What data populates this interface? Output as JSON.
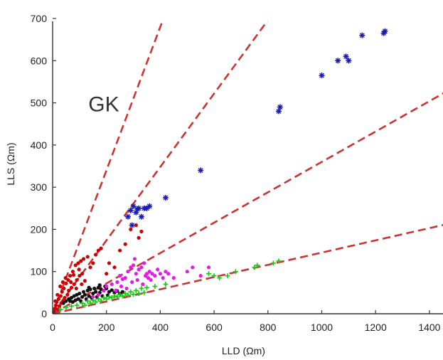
{
  "chart_data": {
    "type": "scatter",
    "title": "",
    "xlabel": "LLD (Ωm)",
    "ylabel": "LLS (Ωm)",
    "xlim": [
      0,
      1450
    ],
    "ylim": [
      0,
      710
    ],
    "x_ticks": [
      0,
      200,
      400,
      600,
      800,
      1000,
      1200,
      1400
    ],
    "y_ticks": [
      0,
      100,
      200,
      300,
      400,
      500,
      600,
      700
    ],
    "grid": false,
    "annotations": [
      {
        "text": "GK",
        "x": 190,
        "y": 480
      }
    ],
    "reference_lines": [
      {
        "slope": 1.7,
        "color": "#cc3333",
        "style": "dashed"
      },
      {
        "slope": 0.87,
        "color": "#cc3333",
        "style": "dashed"
      },
      {
        "slope": 0.36,
        "color": "#cc3333",
        "style": "dashed"
      },
      {
        "slope": 0.145,
        "color": "#cc3333",
        "style": "dashed"
      }
    ],
    "series": [
      {
        "color": "#cc0000",
        "marker": "dot",
        "points": [
          [
            5,
            5
          ],
          [
            8,
            12
          ],
          [
            12,
            20
          ],
          [
            15,
            28
          ],
          [
            20,
            10
          ],
          [
            22,
            35
          ],
          [
            25,
            18
          ],
          [
            30,
            42
          ],
          [
            32,
            25
          ],
          [
            35,
            52
          ],
          [
            40,
            30
          ],
          [
            42,
            60
          ],
          [
            45,
            38
          ],
          [
            50,
            72
          ],
          [
            55,
            45
          ],
          [
            58,
            80
          ],
          [
            60,
            55
          ],
          [
            65,
            90
          ],
          [
            70,
            62
          ],
          [
            75,
            100
          ],
          [
            80,
            70
          ],
          [
            85,
            115
          ],
          [
            90,
            80
          ],
          [
            95,
            120
          ],
          [
            100,
            90
          ],
          [
            105,
            125
          ],
          [
            110,
            95
          ],
          [
            115,
            130
          ],
          [
            120,
            78
          ],
          [
            130,
            135
          ],
          [
            140,
            110
          ],
          [
            150,
            120
          ],
          [
            160,
            140
          ],
          [
            170,
            150
          ],
          [
            180,
            155
          ],
          [
            200,
            95
          ],
          [
            210,
            120
          ],
          [
            230,
            110
          ],
          [
            250,
            150
          ],
          [
            270,
            165
          ],
          [
            290,
            200
          ],
          [
            310,
            210
          ],
          [
            320,
            180
          ],
          [
            330,
            195
          ],
          [
            10,
            30
          ],
          [
            18,
            45
          ],
          [
            28,
            65
          ],
          [
            38,
            75
          ],
          [
            48,
            85
          ],
          [
            68,
            75
          ],
          [
            78,
            92
          ],
          [
            88,
            60
          ],
          [
            98,
            105
          ],
          [
            108,
            70
          ]
        ]
      },
      {
        "color": "#111111",
        "marker": "dot",
        "points": [
          [
            40,
            25
          ],
          [
            50,
            30
          ],
          [
            60,
            35
          ],
          [
            70,
            38
          ],
          [
            75,
            28
          ],
          [
            80,
            42
          ],
          [
            90,
            45
          ],
          [
            95,
            35
          ],
          [
            100,
            48
          ],
          [
            110,
            40
          ],
          [
            115,
            52
          ],
          [
            120,
            45
          ],
          [
            130,
            55
          ],
          [
            135,
            42
          ],
          [
            140,
            58
          ],
          [
            150,
            48
          ],
          [
            155,
            60
          ],
          [
            160,
            52
          ],
          [
            170,
            62
          ],
          [
            175,
            50
          ],
          [
            180,
            58
          ],
          [
            190,
            55
          ],
          [
            200,
            60
          ],
          [
            210,
            52
          ],
          [
            220,
            56
          ],
          [
            230,
            50
          ],
          [
            240,
            54
          ],
          [
            250,
            48
          ],
          [
            260,
            52
          ],
          [
            125,
            35
          ],
          [
            145,
            38
          ],
          [
            165,
            40
          ],
          [
            185,
            42
          ],
          [
            205,
            44
          ],
          [
            105,
            30
          ],
          [
            85,
            32
          ],
          [
            65,
            30
          ],
          [
            175,
            68
          ],
          [
            195,
            65
          ],
          [
            135,
            62
          ]
        ]
      },
      {
        "color": "#e619e6",
        "marker": "dot",
        "points": [
          [
            150,
            40
          ],
          [
            170,
            45
          ],
          [
            190,
            55
          ],
          [
            200,
            65
          ],
          [
            220,
            70
          ],
          [
            240,
            75
          ],
          [
            250,
            90
          ],
          [
            260,
            82
          ],
          [
            270,
            85
          ],
          [
            280,
            100
          ],
          [
            290,
            110
          ],
          [
            300,
            115
          ],
          [
            305,
            130
          ],
          [
            310,
            95
          ],
          [
            320,
            105
          ],
          [
            330,
            110
          ],
          [
            340,
            120
          ],
          [
            350,
            95
          ],
          [
            360,
            100
          ],
          [
            370,
            95
          ],
          [
            380,
            90
          ],
          [
            390,
            105
          ],
          [
            400,
            95
          ],
          [
            420,
            100
          ],
          [
            430,
            95
          ],
          [
            450,
            85
          ],
          [
            500,
            100
          ],
          [
            520,
            110
          ],
          [
            550,
            90
          ],
          [
            580,
            110
          ],
          [
            295,
            75
          ],
          [
            315,
            80
          ],
          [
            335,
            70
          ],
          [
            355,
            85
          ],
          [
            275,
            60
          ],
          [
            255,
            65
          ],
          [
            235,
            55
          ],
          [
            345,
            90
          ],
          [
            365,
            80
          ],
          [
            410,
            85
          ]
        ]
      },
      {
        "color": "#19cc19",
        "marker": "cross",
        "points": [
          [
            30,
            10
          ],
          [
            50,
            15
          ],
          [
            70,
            18
          ],
          [
            90,
            20
          ],
          [
            110,
            25
          ],
          [
            130,
            30
          ],
          [
            150,
            32
          ],
          [
            170,
            35
          ],
          [
            190,
            38
          ],
          [
            210,
            40
          ],
          [
            230,
            42
          ],
          [
            250,
            45
          ],
          [
            270,
            48
          ],
          [
            290,
            52
          ],
          [
            310,
            55
          ],
          [
            330,
            60
          ],
          [
            350,
            62
          ],
          [
            380,
            65
          ],
          [
            420,
            70
          ],
          [
            580,
            95
          ],
          [
            600,
            90
          ],
          [
            620,
            85
          ],
          [
            650,
            90
          ],
          [
            680,
            100
          ],
          [
            750,
            110
          ],
          [
            760,
            115
          ],
          [
            820,
            120
          ],
          [
            840,
            125
          ],
          [
            120,
            20
          ],
          [
            140,
            25
          ],
          [
            160,
            28
          ],
          [
            180,
            30
          ],
          [
            200,
            35
          ],
          [
            220,
            38
          ],
          [
            240,
            40
          ],
          [
            260,
            42
          ],
          [
            280,
            44
          ],
          [
            300,
            46
          ],
          [
            320,
            48
          ],
          [
            340,
            50
          ]
        ]
      },
      {
        "color": "#1a1ab3",
        "marker": "star",
        "points": [
          [
            280,
            230
          ],
          [
            290,
            245
          ],
          [
            295,
            210
          ],
          [
            300,
            255
          ],
          [
            310,
            240
          ],
          [
            315,
            248
          ],
          [
            320,
            250
          ],
          [
            330,
            230
          ],
          [
            340,
            250
          ],
          [
            350,
            250
          ],
          [
            360,
            255
          ],
          [
            420,
            275
          ],
          [
            550,
            340
          ],
          [
            840,
            480
          ],
          [
            845,
            490
          ],
          [
            1000,
            565
          ],
          [
            1060,
            600
          ],
          [
            1090,
            610
          ],
          [
            1100,
            600
          ],
          [
            1150,
            660
          ],
          [
            1230,
            665
          ],
          [
            1235,
            670
          ]
        ]
      }
    ]
  }
}
